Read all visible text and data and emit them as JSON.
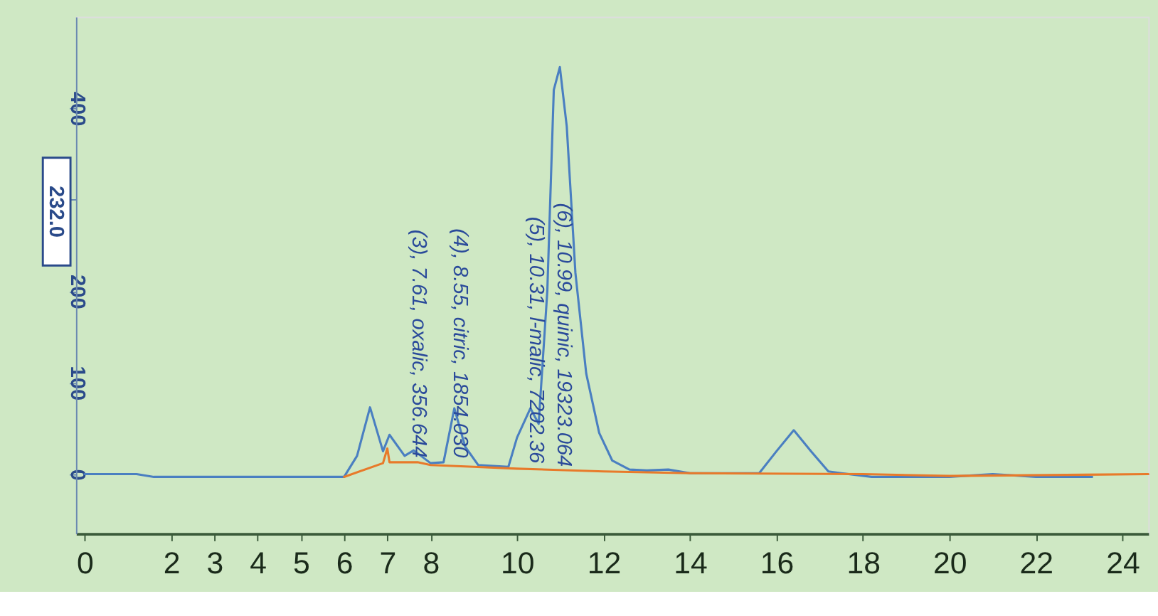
{
  "chart_data": {
    "type": "line",
    "xlim": [
      -0.2,
      24.6
    ],
    "xticks": [
      0,
      2,
      3,
      4,
      5,
      6,
      7,
      8,
      10,
      12,
      14,
      16,
      18,
      20,
      22,
      24
    ],
    "ylim": [
      -65,
      500
    ],
    "yticks": [
      0,
      100,
      200,
      {
        "value": 300,
        "label": null
      },
      400
    ],
    "grid": false,
    "line_style": "solid",
    "marker": "none",
    "series": [
      {
        "color": "#4a7fc1",
        "x": [
          0,
          1.2,
          1.6,
          6.0,
          6.3,
          6.6,
          6.9,
          7.05,
          7.4,
          7.61,
          8.0,
          8.3,
          8.55,
          8.8,
          9.1,
          9.8,
          10.0,
          10.31,
          10.5,
          10.7,
          10.85,
          10.99,
          11.15,
          11.35,
          11.6,
          11.9,
          12.2,
          12.6,
          13.0,
          13.5,
          14.0,
          15.6,
          16.0,
          16.4,
          16.8,
          17.2,
          17.5,
          18.2,
          20.0,
          21.0,
          22.0,
          23.3
        ],
        "values": [
          0,
          0,
          -3,
          -3,
          20,
          73,
          25,
          43,
          20,
          26,
          12,
          13,
          72,
          30,
          10,
          8,
          40,
          72,
          55,
          200,
          420,
          445,
          380,
          220,
          110,
          45,
          15,
          5,
          4,
          5,
          1,
          1,
          25,
          48,
          25,
          3,
          1,
          -3,
          -3,
          0,
          -3,
          -3
        ]
      },
      {
        "color": "#e87a2a",
        "x": [
          6.0,
          6.9,
          7.0,
          7.05,
          7.7,
          8.0,
          9.0,
          10.0,
          12.0,
          14.0,
          18.0,
          20.0,
          24.6
        ],
        "values": [
          -3,
          12,
          28,
          13,
          13,
          10,
          8,
          6,
          3,
          1,
          0,
          -2,
          0
        ]
      }
    ],
    "annotations": [
      {
        "text": "(3), 7.61, oxalic, 356.644",
        "x": 7.75,
        "y": 18
      },
      {
        "text": "(4), 8.55, citric, 1854.030",
        "x": 8.7,
        "y": 18
      },
      {
        "text": "(5), 10.31, l-malic, 7202.36",
        "x": 10.45,
        "y": 12
      },
      {
        "text": "(6), 10.99, quinic, 19323.064",
        "x": 11.1,
        "y": 8
      },
      "232.0"
    ]
  }
}
